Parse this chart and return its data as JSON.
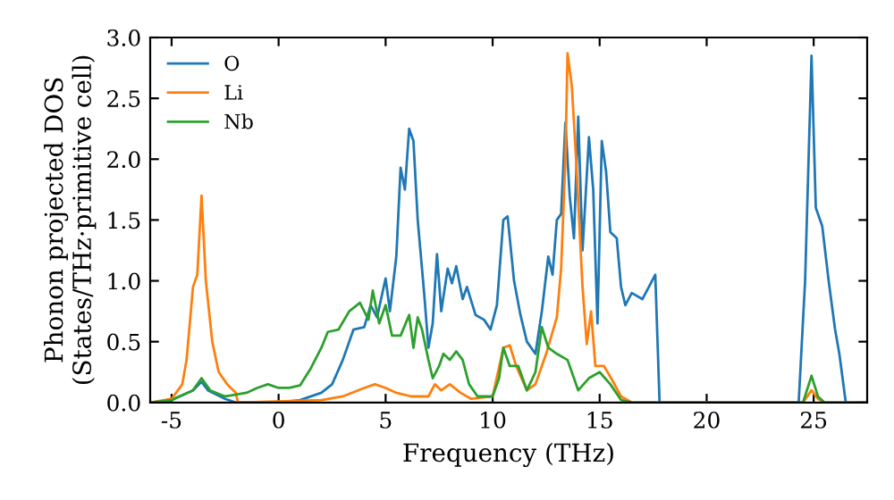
{
  "chart_data": {
    "type": "line",
    "xlabel": "Frequency (THz)",
    "ylabel": "Phonon projected DOS\n(States/THz·primitive cell)",
    "xlim": [
      -6,
      27.5
    ],
    "ylim": [
      0,
      3.0
    ],
    "xticks": [
      -5,
      0,
      5,
      10,
      15,
      20,
      25
    ],
    "yticks": [
      {
        "value": 0,
        "label": "0.0"
      },
      {
        "value": 0.5,
        "label": "0.5"
      },
      {
        "value": 1.0,
        "label": "1.0"
      },
      {
        "value": 1.5,
        "label": "1.5"
      },
      {
        "value": 2.0,
        "label": "2.0"
      },
      {
        "value": 2.5,
        "label": "2.5"
      },
      {
        "value": 3.0,
        "label": "3.0"
      }
    ],
    "legend": "top left",
    "grid": false,
    "marker": "none",
    "line_style": "solid",
    "series": [
      {
        "name": "O",
        "color": "#1f77b4",
        "x": [
          -6,
          -5,
          -4,
          -3.6,
          -3.3,
          -2.5,
          -2,
          0,
          1,
          2,
          2.5,
          3,
          3.5,
          4,
          4.3,
          4.6,
          5,
          5.2,
          5.5,
          5.7,
          5.9,
          6.1,
          6.3,
          6.5,
          6.8,
          7,
          7.2,
          7.4,
          7.6,
          7.9,
          8.1,
          8.3,
          8.6,
          8.8,
          9.2,
          9.6,
          9.9,
          10.2,
          10.5,
          10.7,
          11,
          11.3,
          11.6,
          12,
          12.3,
          12.6,
          12.8,
          13,
          13.2,
          13.4,
          13.6,
          13.8,
          14,
          14.2,
          14.5,
          14.7,
          14.9,
          15.1,
          15.3,
          15.5,
          15.8,
          16,
          16.2,
          16.5,
          17,
          17.3,
          17.6,
          17.8,
          24.3,
          24.6,
          24.9,
          25.1,
          25.4,
          25.7,
          26,
          26.2,
          26.5,
          27.5
        ],
        "values": [
          0,
          0.02,
          0.1,
          0.17,
          0.1,
          0.03,
          0,
          0,
          0.02,
          0.08,
          0.15,
          0.35,
          0.6,
          0.62,
          0.8,
          0.7,
          1.02,
          0.75,
          1.2,
          1.93,
          1.75,
          2.25,
          2.15,
          1.5,
          0.9,
          0.45,
          0.65,
          1.22,
          0.75,
          1.1,
          0.98,
          1.12,
          0.85,
          0.95,
          0.72,
          0.68,
          0.6,
          0.8,
          1.5,
          1.53,
          1.0,
          0.72,
          0.5,
          0.4,
          0.75,
          1.2,
          1.05,
          1.5,
          1.55,
          2.3,
          1.7,
          1.35,
          2.35,
          1.25,
          2.18,
          1.75,
          0.65,
          2.15,
          1.9,
          1.4,
          1.35,
          0.95,
          0.8,
          0.9,
          0.85,
          0.95,
          1.05,
          0,
          0,
          1.0,
          2.85,
          1.6,
          1.45,
          1.0,
          0.6,
          0.4,
          0,
          0
        ]
      },
      {
        "name": "Li",
        "color": "#ff7f0e",
        "x": [
          -6,
          -5,
          -4.5,
          -4.3,
          -4,
          -3.8,
          -3.6,
          -3.4,
          -3.1,
          -2.8,
          -2.4,
          -2,
          -1.9,
          2,
          3,
          4,
          4.5,
          5,
          5.5,
          6.2,
          7,
          7.3,
          7.6,
          8,
          8.5,
          9,
          10,
          10.5,
          10.8,
          11.1,
          11.6,
          12,
          12.5,
          13,
          13.2,
          13.4,
          13.5,
          13.7,
          13.9,
          14.2,
          14.4,
          14.6,
          14.8,
          15.2,
          15.6,
          16,
          16.5,
          24.5,
          24.9,
          25.2,
          25.5,
          27.5
        ],
        "values": [
          0,
          0.03,
          0.15,
          0.35,
          0.95,
          1.05,
          1.7,
          1.0,
          0.5,
          0.25,
          0.15,
          0.08,
          0,
          0.02,
          0.05,
          0.12,
          0.15,
          0.12,
          0.08,
          0.05,
          0.05,
          0.15,
          0.1,
          0.15,
          0.08,
          0.03,
          0.05,
          0.45,
          0.47,
          0.3,
          0.1,
          0.15,
          0.4,
          0.7,
          1.1,
          2.0,
          2.87,
          2.6,
          2.0,
          0.95,
          0.48,
          0.75,
          0.3,
          0.3,
          0.18,
          0.05,
          0,
          0,
          0.1,
          0.03,
          0,
          0
        ]
      },
      {
        "name": "Nb",
        "color": "#2ca02c",
        "x": [
          -6,
          -5,
          -4,
          -3.6,
          -3.2,
          -2.5,
          -1.5,
          -1,
          -0.5,
          0,
          0.5,
          1,
          1.5,
          2,
          2.3,
          2.8,
          3.3,
          3.8,
          4.2,
          4.4,
          4.7,
          5,
          5.3,
          5.7,
          6.1,
          6.3,
          6.5,
          6.7,
          7,
          7.2,
          7.5,
          7.7,
          8,
          8.3,
          8.6,
          8.9,
          9.3,
          10,
          10.3,
          10.5,
          10.8,
          11.2,
          11.6,
          12,
          12.3,
          12.6,
          13,
          13.5,
          14,
          14.5,
          15,
          15.5,
          16,
          16.5,
          24.5,
          24.9,
          25.2,
          25.5,
          27.5
        ],
        "values": [
          0,
          0.02,
          0.1,
          0.2,
          0.1,
          0.05,
          0.08,
          0.12,
          0.15,
          0.12,
          0.12,
          0.14,
          0.28,
          0.45,
          0.58,
          0.6,
          0.75,
          0.82,
          0.68,
          0.92,
          0.65,
          0.8,
          0.55,
          0.55,
          0.72,
          0.45,
          0.7,
          0.6,
          0.35,
          0.2,
          0.3,
          0.4,
          0.35,
          0.42,
          0.35,
          0.15,
          0.05,
          0.05,
          0.2,
          0.45,
          0.3,
          0.3,
          0.1,
          0.25,
          0.62,
          0.45,
          0.4,
          0.35,
          0.1,
          0.2,
          0.25,
          0.15,
          0.02,
          0,
          0,
          0.22,
          0.05,
          0,
          0
        ]
      }
    ]
  }
}
